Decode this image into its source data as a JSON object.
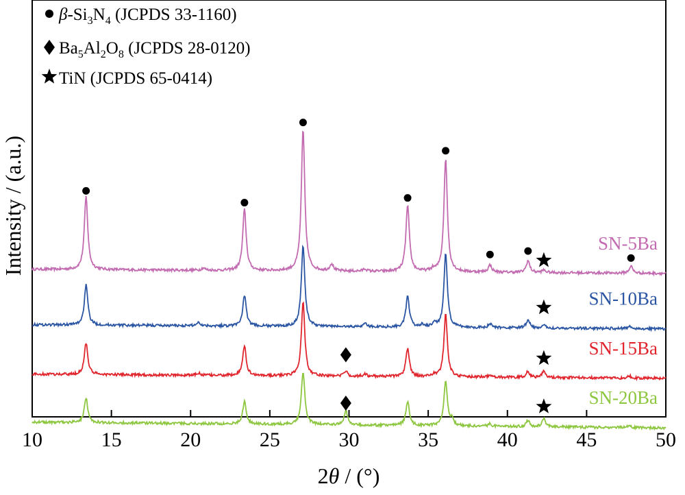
{
  "chart_data": {
    "type": "line",
    "title": "",
    "xlabel": "2θ / (°)",
    "ylabel": "Intensity / (a.u.)",
    "xlim": [
      10,
      50
    ],
    "x_ticks": [
      10,
      15,
      20,
      25,
      30,
      35,
      40,
      45,
      50
    ],
    "y_ticks_shown": false,
    "grid": false,
    "legend_position": "top-left",
    "legend": [
      {
        "marker": "circle",
        "label": "β-Si3N4 (JCPDS 33-1160)"
      },
      {
        "marker": "diamond",
        "label": "Ba5Al2O8 (JCPDS 28-0120)"
      },
      {
        "marker": "star",
        "label": "TiN (JCPDS 65-0414)"
      }
    ],
    "series": [
      {
        "name": "SN-5Ba",
        "color": "#c26bb0",
        "baseline": 9.2,
        "peaks": [
          [
            13.4,
            6.2
          ],
          [
            20.8,
            0.2
          ],
          [
            23.4,
            5.2
          ],
          [
            27.1,
            12.0
          ],
          [
            28.9,
            0.6
          ],
          [
            31.0,
            0.2
          ],
          [
            33.7,
            5.6
          ],
          [
            35.3,
            0.2
          ],
          [
            36.1,
            9.6
          ],
          [
            38.9,
            0.6
          ],
          [
            41.3,
            1.0
          ],
          [
            42.3,
            0.2
          ],
          [
            47.8,
            0.6
          ]
        ],
        "markers": [
          {
            "x": 13.4,
            "y": 16.2,
            "marker": "circle"
          },
          {
            "x": 23.4,
            "y": 15.2,
            "marker": "circle"
          },
          {
            "x": 27.1,
            "y": 22.0,
            "marker": "circle"
          },
          {
            "x": 33.7,
            "y": 15.6,
            "marker": "circle"
          },
          {
            "x": 36.1,
            "y": 19.6,
            "marker": "circle"
          },
          {
            "x": 38.9,
            "y": 10.8,
            "marker": "circle"
          },
          {
            "x": 41.3,
            "y": 11.1,
            "marker": "circle"
          },
          {
            "x": 42.3,
            "y": 10.3,
            "marker": "star"
          },
          {
            "x": 47.8,
            "y": 10.5,
            "marker": "circle"
          }
        ]
      },
      {
        "name": "SN-10Ba",
        "color": "#2a55a3",
        "baseline": 4.5,
        "peaks": [
          [
            13.4,
            3.4
          ],
          [
            20.5,
            0.3
          ],
          [
            23.4,
            2.6
          ],
          [
            27.1,
            6.9
          ],
          [
            31.0,
            0.3
          ],
          [
            33.7,
            2.6
          ],
          [
            34.6,
            0.2
          ],
          [
            35.4,
            0.3
          ],
          [
            36.1,
            6.2
          ],
          [
            38.9,
            0.3
          ],
          [
            41.3,
            0.7
          ],
          [
            42.3,
            0.2
          ],
          [
            47.7,
            0.2
          ]
        ],
        "markers": [
          {
            "x": 42.3,
            "y": 6.3,
            "marker": "star"
          }
        ]
      },
      {
        "name": "SN-15Ba",
        "color": "#e0252d",
        "baseline": 0.3,
        "peaks": [
          [
            13.4,
            2.7
          ],
          [
            20.5,
            0.2
          ],
          [
            23.4,
            2.5
          ],
          [
            27.1,
            6.3
          ],
          [
            29.8,
            0.4
          ],
          [
            31.0,
            0.2
          ],
          [
            33.7,
            2.4
          ],
          [
            35.4,
            0.2
          ],
          [
            36.1,
            5.3
          ],
          [
            38.9,
            0.2
          ],
          [
            41.3,
            0.5
          ],
          [
            42.3,
            0.6
          ],
          [
            47.7,
            0.2
          ]
        ],
        "markers": [
          {
            "x": 29.8,
            "y": 2.3,
            "marker": "diamond"
          },
          {
            "x": 42.3,
            "y": 2.0,
            "marker": "star"
          }
        ]
      },
      {
        "name": "SN-20Ba",
        "color": "#8dc63f",
        "baseline": -3.9,
        "peaks": [
          [
            13.4,
            2.1
          ],
          [
            23.4,
            1.9
          ],
          [
            27.1,
            4.5
          ],
          [
            29.8,
            1.2
          ],
          [
            33.7,
            2.0
          ],
          [
            36.1,
            3.7
          ],
          [
            36.5,
            0.5
          ],
          [
            38.9,
            0.2
          ],
          [
            41.3,
            0.5
          ],
          [
            42.3,
            0.7
          ],
          [
            47.7,
            0.2
          ]
        ],
        "markers": [
          {
            "x": 29.8,
            "y": -1.8,
            "marker": "diamond"
          },
          {
            "x": 42.3,
            "y": -2.1,
            "marker": "star"
          }
        ]
      }
    ]
  }
}
